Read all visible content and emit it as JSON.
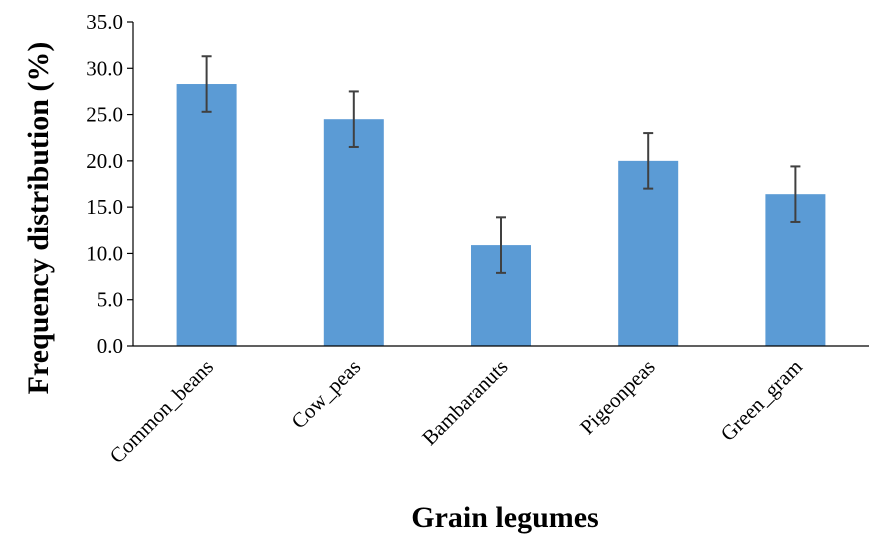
{
  "chart_data": {
    "type": "bar",
    "title": "",
    "xlabel": "Grain legumes",
    "ylabel": "Frequency distribution (%)",
    "categories": [
      "Common_beans",
      "Cow_peas",
      "Bambaranuts",
      "Pigeonpeas",
      "Green_gram"
    ],
    "values": [
      28.3,
      24.5,
      10.9,
      20.0,
      16.4
    ],
    "error": [
      3.0,
      3.0,
      3.0,
      3.0,
      3.0
    ],
    "ylim": [
      0,
      35
    ],
    "yticks": [
      "0.0",
      "5.0",
      "10.0",
      "15.0",
      "20.0",
      "25.0",
      "30.0",
      "35.0"
    ],
    "grid": false,
    "legend": "none",
    "bar_color": "#5b9bd5",
    "error_bar_color": "#404040"
  }
}
